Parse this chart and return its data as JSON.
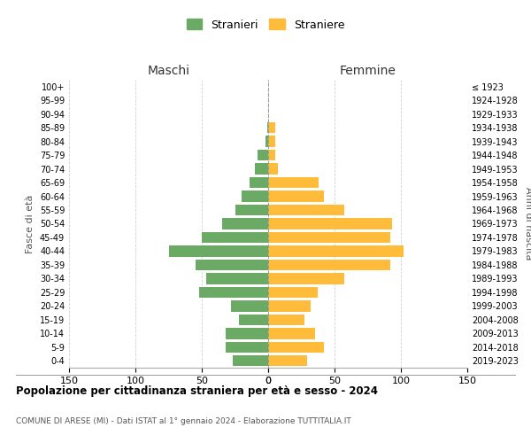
{
  "age_groups": [
    "0-4",
    "5-9",
    "10-14",
    "15-19",
    "20-24",
    "25-29",
    "30-34",
    "35-39",
    "40-44",
    "45-49",
    "50-54",
    "55-59",
    "60-64",
    "65-69",
    "70-74",
    "75-79",
    "80-84",
    "85-89",
    "90-94",
    "95-99",
    "100+"
  ],
  "birth_years": [
    "2019-2023",
    "2014-2018",
    "2009-2013",
    "2004-2008",
    "1999-2003",
    "1994-1998",
    "1989-1993",
    "1984-1988",
    "1979-1983",
    "1974-1978",
    "1969-1973",
    "1964-1968",
    "1959-1963",
    "1954-1958",
    "1949-1953",
    "1944-1948",
    "1939-1943",
    "1934-1938",
    "1929-1933",
    "1924-1928",
    "≤ 1923"
  ],
  "maschi": [
    27,
    32,
    32,
    22,
    28,
    52,
    47,
    55,
    75,
    50,
    35,
    25,
    20,
    14,
    10,
    8,
    2,
    1,
    0,
    0,
    0
  ],
  "femmine": [
    29,
    42,
    35,
    27,
    32,
    37,
    57,
    92,
    102,
    92,
    93,
    57,
    42,
    38,
    7,
    5,
    5,
    5,
    0,
    0,
    0
  ],
  "maschi_color": "#6aaa64",
  "femmine_color": "#ffbc3b",
  "title": "Popolazione per cittadinanza straniera per età e sesso - 2024",
  "subtitle": "COMUNE DI ARESE (MI) - Dati ISTAT al 1° gennaio 2024 - Elaborazione TUTTITALIA.IT",
  "ylabel_left": "Fasce di età",
  "ylabel_right": "Anni di nascita",
  "header_left": "Maschi",
  "header_right": "Femmine",
  "legend_stranieri": "Stranieri",
  "legend_straniere": "Straniere",
  "xlim": 150,
  "background_color": "#ffffff",
  "grid_color": "#cccccc"
}
